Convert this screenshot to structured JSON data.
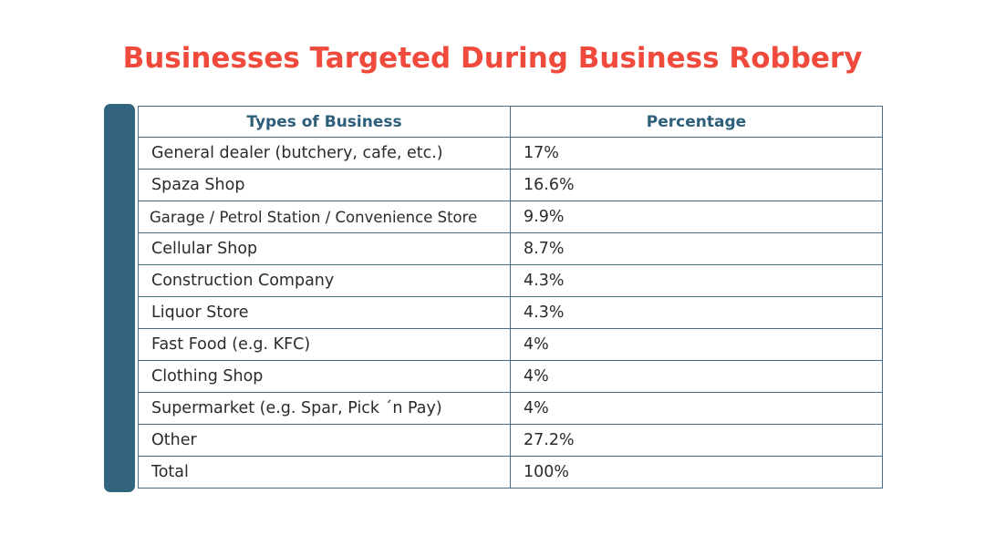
{
  "colors": {
    "title": "#f04a3c",
    "header_text": "#2d5e7a",
    "side_bar": "#33647d",
    "border": "#4a6d85"
  },
  "chart_data": {
    "type": "table",
    "title": "Businesses Targeted During Business Robbery",
    "columns": [
      "Types of Business",
      "Percentage"
    ],
    "rows": [
      [
        "General dealer (butchery, cafe, etc.)",
        "17%"
      ],
      [
        "Spaza Shop",
        "16.6%"
      ],
      [
        "Garage / Petrol Station / Convenience Store",
        "9.9%"
      ],
      [
        "Cellular Shop",
        "8.7%"
      ],
      [
        "Construction Company",
        "4.3%"
      ],
      [
        "Liquor Store",
        "4.3%"
      ],
      [
        "Fast Food (e.g. KFC)",
        "4%"
      ],
      [
        "Clothing Shop",
        "4%"
      ],
      [
        "Supermarket (e.g. Spar, Pick ´n Pay)",
        "4%"
      ],
      [
        "Other",
        "27.2%"
      ],
      [
        "Total",
        "100%"
      ]
    ]
  }
}
